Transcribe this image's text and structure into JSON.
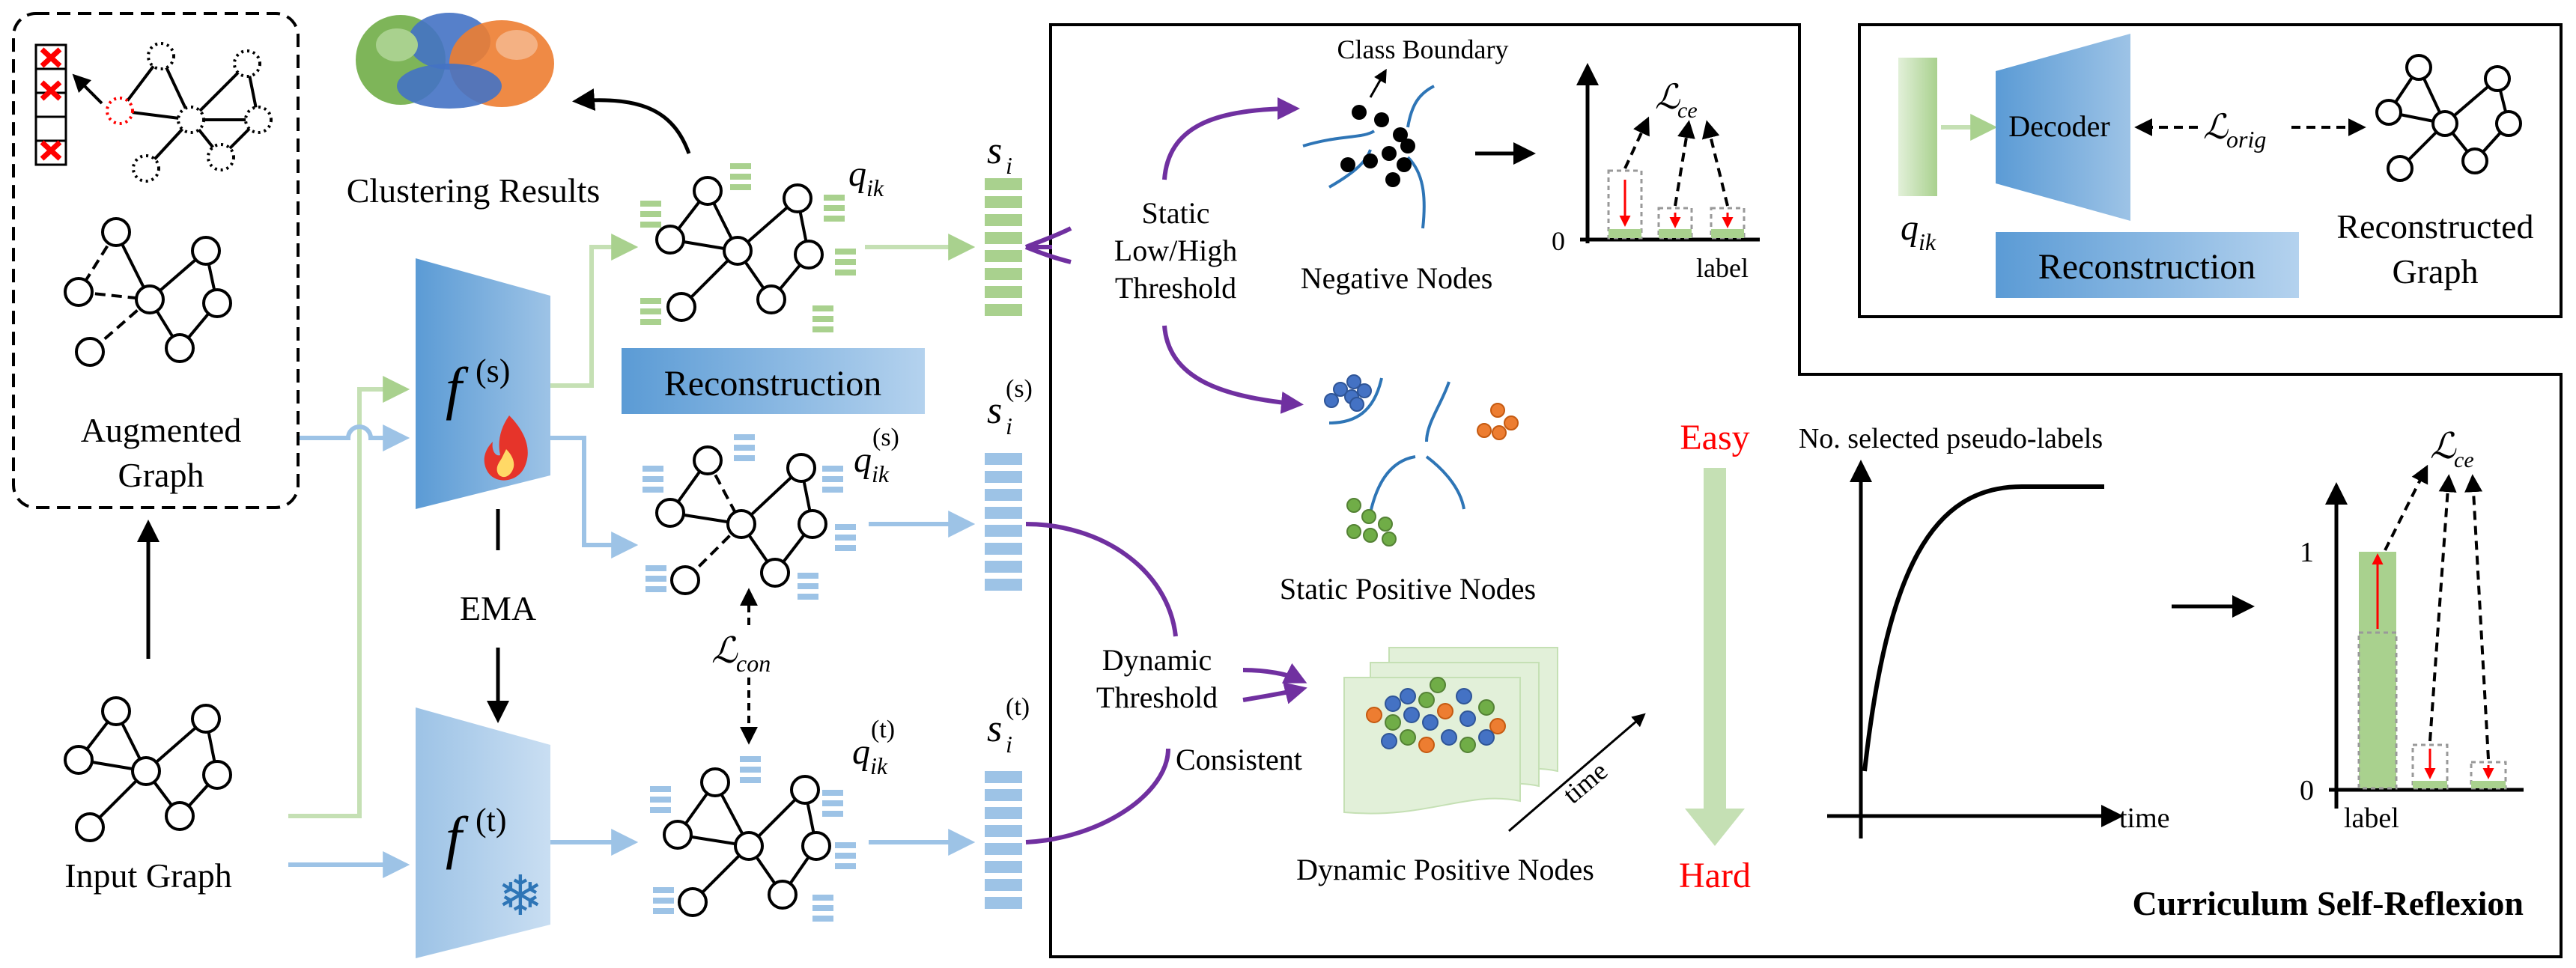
{
  "labels": {
    "augmented_graph_line1": "Augmented",
    "augmented_graph_line2": "Graph",
    "input_graph": "Input Graph",
    "clustering_results": "Clustering Results",
    "reconstruction": "Reconstruction",
    "ema": "EMA",
    "f_student": "f",
    "f_student_sup": "(s)",
    "f_teacher": "f",
    "f_teacher_sup": "(t)",
    "q_ik": "q",
    "q_ik_sub": "ik",
    "q_s_sup": "(s)",
    "q_t_sup": "(t)",
    "s_i": "s",
    "s_i_sub": "i",
    "s_s_sup": "(s)",
    "s_t_sup": "(t)",
    "l_con": "ℒ",
    "l_con_sub": "con",
    "l_ce": "ℒ",
    "l_ce_sub": "ce",
    "l_orig": "ℒ",
    "l_orig_sub": "orig",
    "class_boundary": "Class Boundary",
    "static_threshold_1": "Static",
    "static_threshold_2": "Low/High",
    "static_threshold_3": "Threshold",
    "negative_nodes": "Negative Nodes",
    "static_positive_nodes": "Static Positive Nodes",
    "dynamic_threshold_1": "Dynamic",
    "dynamic_threshold_2": "Threshold",
    "consistent": "Consistent",
    "time_diag": "time",
    "dynamic_positive_nodes": "Dynamic Positive Nodes",
    "easy": "Easy",
    "hard": "Hard",
    "no_selected": "No. selected pseudo-labels",
    "time_axis": "time",
    "label_axis_1": "label",
    "label_axis_2": "label",
    "zero_1": "0",
    "zero_2": "0",
    "one": "1",
    "decoder": "Decoder",
    "reconstructed_graph_1": "Reconstructed",
    "reconstructed_graph_2": "Graph",
    "curriculum_self_reflexion": "Curriculum Self-Reflexion",
    "fire_icon": "fire",
    "snowflake_icon": "❄"
  },
  "colors": {
    "green": "#a9d18e",
    "green_light": "#c5e0b4",
    "blue": "#9dc3e6",
    "blue_dark": "#5b9bd5",
    "purple": "#7030a0",
    "red": "#ff0000",
    "node_blue": "#4472c4",
    "node_orange": "#ed7d31",
    "node_green": "#70ad47"
  }
}
